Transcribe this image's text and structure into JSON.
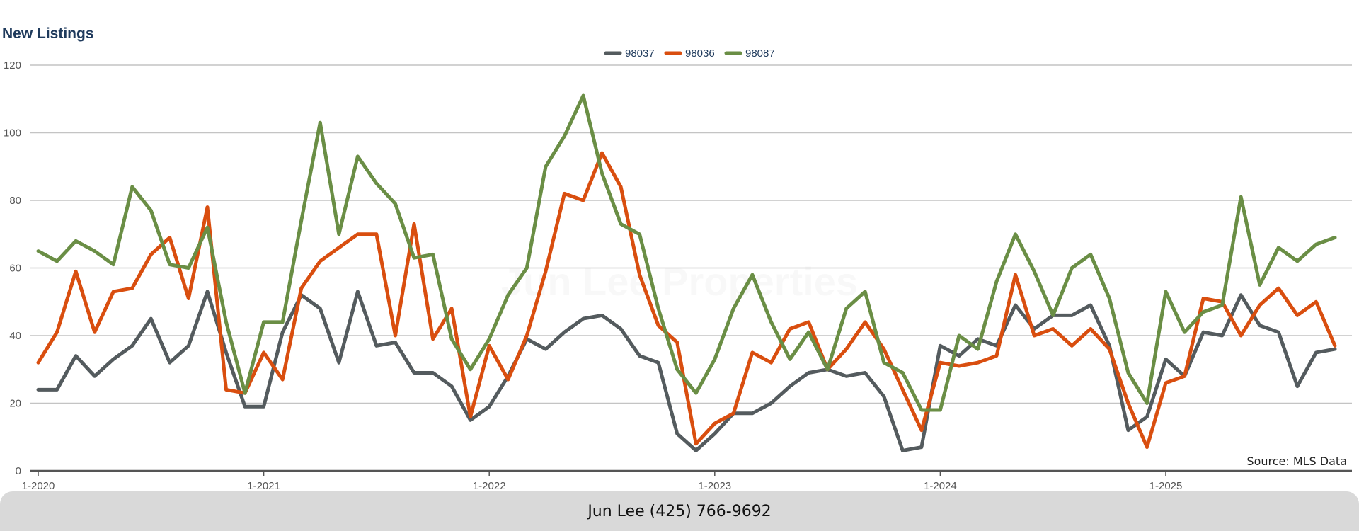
{
  "chart_data": {
    "type": "line",
    "title": "New Listings",
    "source": "Source: MLS Data",
    "watermark": "Jun Lee Properties",
    "ylim": [
      0,
      120
    ],
    "y_ticks": [
      0,
      20,
      40,
      60,
      80,
      100,
      120
    ],
    "x_tick_labels": [
      "1-2020",
      "1-2021",
      "1-2022",
      "1-2023",
      "1-2024",
      "1-2025"
    ],
    "grid": true,
    "legend_position": "top-center",
    "series": [
      {
        "name": "98037",
        "color": "#545b5e",
        "values": [
          24,
          24,
          34,
          28,
          33,
          37,
          45,
          32,
          37,
          53,
          35,
          19,
          19,
          41,
          52,
          48,
          32,
          53,
          37,
          38,
          29,
          29,
          25,
          15,
          19,
          28,
          39,
          36,
          41,
          45,
          46,
          42,
          34,
          32,
          11,
          6,
          11,
          17,
          17,
          20,
          25,
          29,
          30,
          28,
          29,
          22,
          6,
          7,
          37,
          34,
          39,
          37,
          49,
          42,
          46,
          46,
          49,
          37,
          12,
          16,
          33,
          28,
          41,
          40,
          52,
          43,
          41,
          25,
          35,
          36
        ]
      },
      {
        "name": "98036",
        "color": "#d94e0f",
        "values": [
          32,
          41,
          59,
          41,
          53,
          54,
          64,
          69,
          51,
          78,
          24,
          23,
          35,
          27,
          54,
          62,
          66,
          70,
          70,
          40,
          73,
          39,
          48,
          16,
          37,
          27,
          40,
          59,
          82,
          80,
          94,
          84,
          58,
          43,
          38,
          8,
          14,
          17,
          35,
          32,
          42,
          44,
          30,
          36,
          44,
          36,
          24,
          12,
          32,
          31,
          32,
          34,
          58,
          40,
          42,
          37,
          42,
          36,
          20,
          7,
          26,
          28,
          51,
          50,
          40,
          49,
          54,
          46,
          50,
          37
        ]
      },
      {
        "name": "98087",
        "color": "#6a8e45",
        "values": [
          65,
          62,
          68,
          65,
          61,
          84,
          77,
          61,
          60,
          72,
          44,
          23,
          44,
          44,
          74,
          103,
          70,
          93,
          85,
          79,
          63,
          64,
          39,
          30,
          39,
          52,
          60,
          90,
          99,
          111,
          88,
          73,
          70,
          48,
          30,
          23,
          33,
          48,
          58,
          44,
          33,
          41,
          30,
          48,
          53,
          32,
          29,
          18,
          18,
          40,
          36,
          56,
          70,
          59,
          46,
          60,
          64,
          51,
          29,
          20,
          53,
          41,
          47,
          49,
          81,
          55,
          66,
          62,
          67,
          69
        ]
      }
    ]
  },
  "footer": {
    "contact": "Jun Lee (425) 766-9692"
  }
}
